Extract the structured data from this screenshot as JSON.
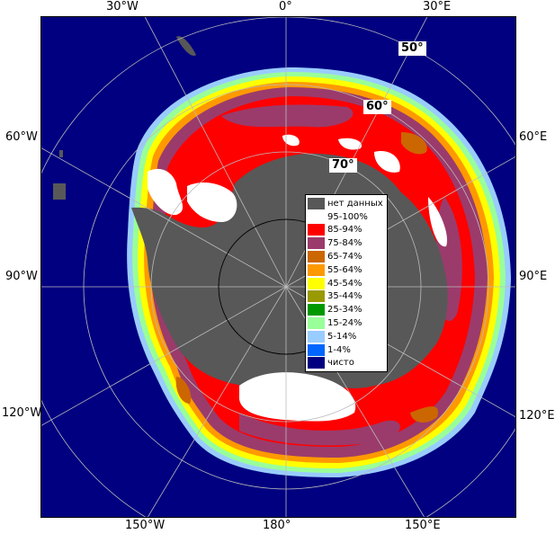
{
  "map": {
    "colors": {
      "ocean": "#000080",
      "no_data": "#585858",
      "ice_95_100": "#ffffff",
      "ice_85_94": "#ff0000",
      "ice_75_84": "#9b3b6b",
      "ice_65_74": "#cc6600",
      "ice_55_64": "#ff9900",
      "ice_45_54": "#ffff00",
      "ice_35_44": "#999900",
      "ice_25_34": "#009900",
      "ice_15_24": "#99ff99",
      "ice_5_14": "#99ccff",
      "ice_1_4": "#0066ff",
      "grid": "#bbbbbb"
    },
    "longitude_labels": {
      "top_30w": "30°W",
      "top_0": "0°",
      "top_30e": "30°E",
      "left_60w": "60°W",
      "left_90w": "90°W",
      "left_120w": "120°W",
      "right_60e": "60°E",
      "right_90e": "90°E",
      "right_120e": "120°E",
      "bottom_150w": "150°W",
      "bottom_180": "180°",
      "bottom_150e": "150°E"
    },
    "latitude_labels": {
      "lat_50": "50°",
      "lat_60": "60°",
      "lat_70": "70°"
    }
  },
  "legend": {
    "items": [
      {
        "label": "нет данных",
        "color": "#585858"
      },
      {
        "label": "95-100%",
        "color": "#ffffff"
      },
      {
        "label": "85-94%",
        "color": "#ff0000"
      },
      {
        "label": "75-84%",
        "color": "#9b3b6b"
      },
      {
        "label": "65-74%",
        "color": "#cc6600"
      },
      {
        "label": "55-64%",
        "color": "#ff9900"
      },
      {
        "label": "45-54%",
        "color": "#ffff00"
      },
      {
        "label": "35-44%",
        "color": "#999900"
      },
      {
        "label": "25-34%",
        "color": "#009900"
      },
      {
        "label": "15-24%",
        "color": "#99ff99"
      },
      {
        "label": "5-14%",
        "color": "#99ccff"
      },
      {
        "label": "1-4%",
        "color": "#0066ff"
      },
      {
        "label": "чисто",
        "color": "#000080"
      }
    ]
  }
}
